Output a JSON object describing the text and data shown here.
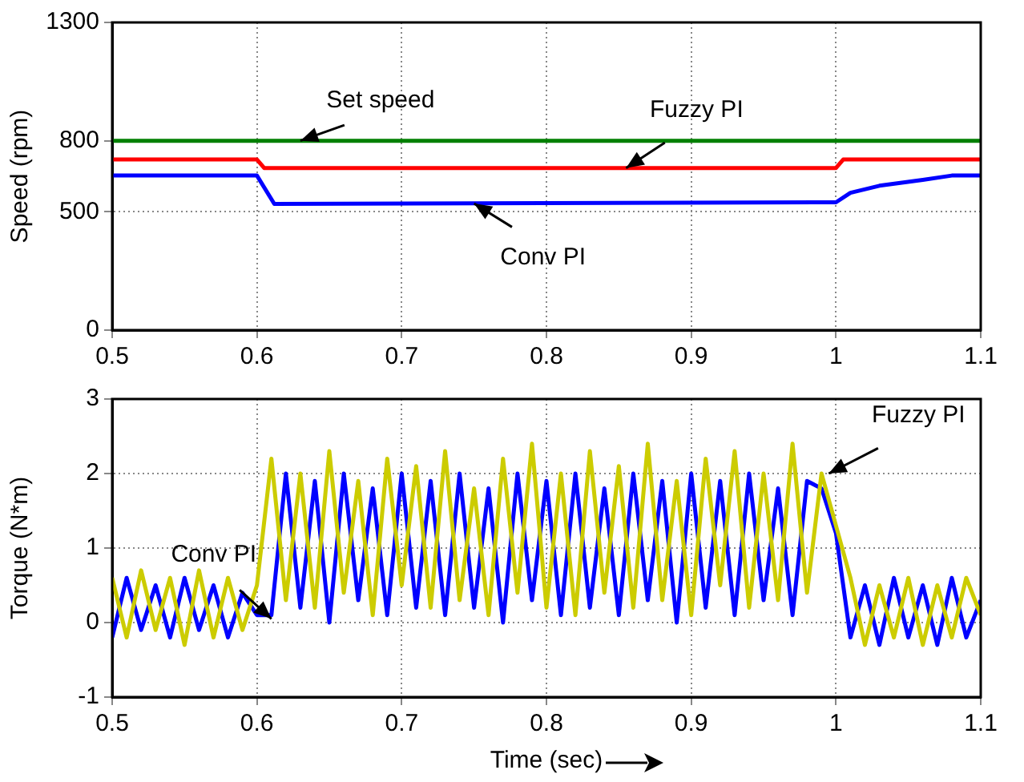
{
  "chart_data": [
    {
      "type": "line",
      "ylabel": "Speed (rpm)",
      "xlim": [
        0.5,
        1.1
      ],
      "xticks": [
        0.5,
        0.6,
        0.7,
        0.8,
        0.9,
        1,
        1.1
      ],
      "ylim": [
        0,
        1300
      ],
      "yticks": [
        0,
        500,
        800,
        1300
      ],
      "grid": true,
      "legend": false,
      "marker": "none",
      "line_style": "solid",
      "series": [
        {
          "color": "#008000",
          "x": [
            0.5,
            1.1
          ],
          "values": [
            800,
            800
          ]
        },
        {
          "color": "#ff0000",
          "x": [
            0.5,
            0.6,
            0.605,
            1.0,
            1.005,
            1.1
          ],
          "values": [
            721,
            721,
            685,
            685,
            721,
            721
          ]
        },
        {
          "color": "#0000ff",
          "x": [
            0.5,
            0.6,
            0.612,
            1.0,
            1.01,
            1.03,
            1.06,
            1.08,
            1.1
          ],
          "values": [
            653,
            653,
            533,
            540,
            580,
            610,
            635,
            653,
            653
          ]
        }
      ],
      "annotations": [
        {
          "text": "Set speed",
          "x": 0.63,
          "y": 800
        },
        {
          "text": "Fuzzy PI",
          "x": 0.855,
          "y": 685
        },
        {
          "text": "Conv PI",
          "x": 0.75,
          "y": 535
        }
      ]
    },
    {
      "type": "line",
      "xlabel": "Time (sec)",
      "ylabel": "Torque (N*m)",
      "xlim": [
        0.5,
        1.1
      ],
      "xticks": [
        0.5,
        0.6,
        0.7,
        0.8,
        0.9,
        1,
        1.1
      ],
      "ylim": [
        -1,
        3
      ],
      "yticks": [
        -1,
        0,
        1,
        2,
        3
      ],
      "grid": true,
      "legend": false,
      "marker": "none",
      "line_style": "solid",
      "x": [
        0.5,
        0.51,
        0.52,
        0.53,
        0.54,
        0.55,
        0.56,
        0.57,
        0.58,
        0.59,
        0.6,
        0.61,
        0.62,
        0.63,
        0.64,
        0.65,
        0.66,
        0.67,
        0.68,
        0.69,
        0.7,
        0.71,
        0.72,
        0.73,
        0.74,
        0.75,
        0.76,
        0.77,
        0.78,
        0.79,
        0.8,
        0.81,
        0.82,
        0.83,
        0.84,
        0.85,
        0.86,
        0.87,
        0.88,
        0.89,
        0.9,
        0.91,
        0.92,
        0.93,
        0.94,
        0.95,
        0.96,
        0.97,
        0.98,
        0.99,
        1.0,
        1.01,
        1.02,
        1.03,
        1.04,
        1.05,
        1.06,
        1.07,
        1.08,
        1.09,
        1.1
      ],
      "series": [
        {
          "color": "#0000ff",
          "values": [
            -0.2,
            0.6,
            -0.1,
            0.5,
            -0.2,
            0.6,
            -0.1,
            0.5,
            -0.2,
            0.4,
            0.1,
            0.1,
            2.0,
            0.2,
            1.9,
            0.0,
            2.0,
            0.3,
            1.8,
            0.1,
            2.0,
            0.2,
            1.9,
            0.1,
            2.0,
            0.2,
            1.8,
            0.0,
            2.0,
            0.3,
            1.9,
            0.1,
            2.0,
            0.2,
            1.8,
            0.1,
            2.0,
            0.3,
            1.9,
            0.0,
            2.0,
            0.2,
            1.9,
            0.1,
            2.0,
            0.3,
            1.8,
            0.1,
            1.9,
            1.8,
            1.2,
            -0.2,
            0.5,
            -0.3,
            0.6,
            -0.2,
            0.5,
            -0.3,
            0.6,
            -0.2,
            0.3
          ]
        },
        {
          "color": "#cccc00",
          "values": [
            0.6,
            -0.2,
            0.7,
            -0.1,
            0.6,
            -0.3,
            0.7,
            -0.2,
            0.6,
            -0.1,
            0.5,
            2.2,
            0.3,
            2.0,
            0.2,
            2.3,
            0.4,
            1.9,
            0.1,
            2.2,
            0.5,
            2.1,
            0.2,
            2.3,
            0.3,
            1.8,
            0.1,
            2.2,
            0.4,
            2.4,
            0.2,
            2.0,
            0.1,
            2.3,
            0.4,
            2.1,
            0.2,
            2.4,
            0.3,
            1.9,
            0.1,
            2.2,
            0.5,
            2.3,
            0.2,
            2.0,
            0.3,
            2.4,
            0.4,
            2.0,
            1.3,
            0.6,
            -0.3,
            0.5,
            -0.2,
            0.6,
            -0.3,
            0.5,
            -0.2,
            0.6,
            0.1
          ]
        }
      ],
      "annotations": [
        {
          "text": "Conv PI",
          "x": 0.61,
          "y": 0.05
        },
        {
          "text": "Fuzzy PI",
          "x": 0.995,
          "y": 2.0
        }
      ]
    }
  ]
}
